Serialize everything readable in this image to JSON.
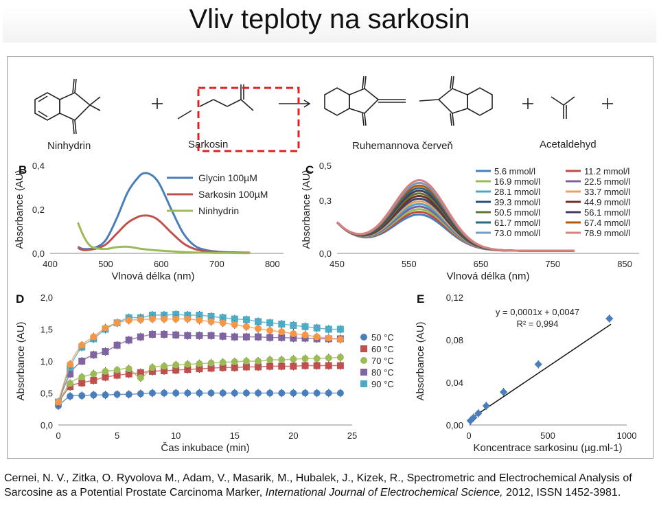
{
  "title": "Vliv teploty na sarkosin",
  "scheme": {
    "labels": [
      "Ninhydrin",
      "Sarkosin",
      "Ruhemannova červeň",
      "Acetaldehyd"
    ]
  },
  "citation": {
    "part1": "Cernei, N. V., Zitka, O. Ryvolova M., Adam, V., Masarik, M., Hubalek, J., Kizek, R., Spectrometric and Electrochemical Analysis of Sarcosine as a Potential Prostate Carcinoma Marker, ",
    "journal": "International Journal of Electrochemical Science,",
    "part2": " 2012, ISSN 1452-3981."
  },
  "chart_data": [
    {
      "panel": "B",
      "type": "line",
      "xlabel": "Vlnová délka (nm)",
      "ylabel": "Absorbance (AU)",
      "xticks": [
        "400",
        "500",
        "600",
        "700",
        "800"
      ],
      "yticks": [
        "0,0",
        "0,2",
        "0,4"
      ],
      "xlim": [
        400,
        820
      ],
      "ylim": [
        0,
        0.4
      ],
      "legend_position": "top-right",
      "series": [
        {
          "name": "Glycin 100µM",
          "color": "#4a7ebb",
          "x": [
            450,
            460,
            480,
            500,
            520,
            540,
            560,
            570,
            580,
            590,
            600,
            620,
            640,
            660,
            680,
            700,
            720,
            740,
            760
          ],
          "y": [
            0.03,
            0.02,
            0.025,
            0.06,
            0.16,
            0.28,
            0.35,
            0.365,
            0.36,
            0.34,
            0.3,
            0.19,
            0.09,
            0.035,
            0.015,
            0.008,
            0.005,
            0.004,
            0.003
          ]
        },
        {
          "name": "Sarkosin 100µM",
          "color": "#c0504d",
          "x": [
            450,
            460,
            480,
            500,
            520,
            540,
            560,
            570,
            580,
            590,
            600,
            620,
            640,
            660,
            680,
            700,
            720,
            740,
            760
          ],
          "y": [
            0.025,
            0.015,
            0.02,
            0.04,
            0.09,
            0.14,
            0.168,
            0.172,
            0.17,
            0.16,
            0.14,
            0.09,
            0.045,
            0.02,
            0.01,
            0.006,
            0.004,
            0.003,
            0.003
          ]
        },
        {
          "name": "Ninhydrin",
          "color": "#9bbb59",
          "x": [
            450,
            460,
            470,
            480,
            500,
            520,
            540,
            560,
            580,
            600,
            620,
            640,
            660,
            680,
            700,
            720,
            740,
            760
          ],
          "y": [
            0.14,
            0.08,
            0.04,
            0.025,
            0.02,
            0.028,
            0.03,
            0.022,
            0.016,
            0.012,
            0.009,
            0.006,
            0.004,
            0.003,
            0.002,
            0.002,
            0.001,
            0.001
          ]
        }
      ]
    },
    {
      "panel": "C",
      "type": "line",
      "xlabel": "Vlnová délka (nm)",
      "ylabel": "Absorbance (AU)",
      "xticks": [
        "450",
        "550",
        "650",
        "750",
        "850"
      ],
      "yticks": [
        "0,0",
        "0,3",
        "0,5"
      ],
      "xlim": [
        450,
        870
      ],
      "ylim": [
        0,
        0.5
      ],
      "legend_position": "top-right",
      "series": [
        {
          "name": "5.6 mmol/l",
          "color": "#4a7ebb",
          "peak": 0.2
        },
        {
          "name": "11.2 mmol/l",
          "color": "#be4b48",
          "peak": 0.215
        },
        {
          "name": "16.9 mmol/l",
          "color": "#98b954",
          "peak": 0.23
        },
        {
          "name": "22.5 mmol/l",
          "color": "#7d60a0",
          "peak": 0.245
        },
        {
          "name": "28.1 mmol/l",
          "color": "#46aac5",
          "peak": 0.26
        },
        {
          "name": "33.7 mmol/l",
          "color": "#f59d56",
          "peak": 0.275
        },
        {
          "name": "39.3 mmol/l",
          "color": "#2c4d75",
          "peak": 0.29
        },
        {
          "name": "44.9 mmol/l",
          "color": "#772c2a",
          "peak": 0.305
        },
        {
          "name": "50.5 mmol/l",
          "color": "#5f7530",
          "peak": 0.32
        },
        {
          "name": "56.1 mmol/l",
          "color": "#4b3861",
          "peak": 0.335
        },
        {
          "name": "61.7 mmol/l",
          "color": "#276a7c",
          "peak": 0.35
        },
        {
          "name": "67.4 mmol/l",
          "color": "#b65708",
          "peak": 0.365
        },
        {
          "name": "73.0 mmol/l",
          "color": "#729acb",
          "peak": 0.38
        },
        {
          "name": "78.9 mmol/l",
          "color": "#d9807d",
          "peak": 0.395
        }
      ]
    },
    {
      "panel": "D",
      "type": "scatter",
      "xlabel": "Čas inkubace (min)",
      "ylabel": "Absorbance (AU)",
      "xticks": [
        "0",
        "5",
        "10",
        "15",
        "20",
        "25"
      ],
      "yticks": [
        "0,0",
        "0,5",
        "1,0",
        "1,5",
        "2,0"
      ],
      "xlim": [
        0,
        25
      ],
      "ylim": [
        0,
        2.0
      ],
      "legend_position": "right",
      "x": [
        0,
        1,
        2,
        3,
        4,
        5,
        6,
        7,
        8,
        9,
        10,
        11,
        12,
        13,
        14,
        15,
        16,
        17,
        18,
        19,
        20,
        21,
        22,
        23,
        24
      ],
      "series": [
        {
          "name": "50 °C",
          "color": "#4a7ebb",
          "marker": "circle",
          "values": [
            0.3,
            0.45,
            0.46,
            0.47,
            0.47,
            0.48,
            0.48,
            0.49,
            0.5,
            0.5,
            0.5,
            0.5,
            0.5,
            0.5,
            0.5,
            0.5,
            0.5,
            0.5,
            0.5,
            0.5,
            0.5,
            0.5,
            0.5,
            0.5,
            0.5
          ]
        },
        {
          "name": "60 °C",
          "color": "#c0504d",
          "marker": "square",
          "values": [
            0.35,
            0.6,
            0.66,
            0.7,
            0.75,
            0.78,
            0.8,
            0.82,
            0.84,
            0.85,
            0.86,
            0.87,
            0.88,
            0.89,
            0.9,
            0.9,
            0.91,
            0.91,
            0.92,
            0.92,
            0.92,
            0.93,
            0.93,
            0.93,
            0.93
          ]
        },
        {
          "name": "70 °C",
          "color": "#9bbb59",
          "marker": "circle",
          "values": [
            0.36,
            0.65,
            0.75,
            0.8,
            0.84,
            0.86,
            0.88,
            0.74,
            0.9,
            0.92,
            0.94,
            0.95,
            0.96,
            0.97,
            0.98,
            0.99,
            1.0,
            1.0,
            1.02,
            1.02,
            1.03,
            1.04,
            1.04,
            1.05,
            1.06
          ]
        },
        {
          "name": "80 °C",
          "color": "#8064a2",
          "marker": "square",
          "values": [
            0.36,
            0.8,
            1.0,
            1.1,
            1.15,
            1.25,
            1.33,
            1.38,
            1.42,
            1.42,
            1.41,
            1.4,
            1.4,
            1.4,
            1.39,
            1.38,
            1.38,
            1.38,
            1.37,
            1.37,
            1.36,
            1.36,
            1.35,
            1.35,
            1.35
          ]
        },
        {
          "name": "90 °C",
          "color": "#4bacc6",
          "marker": "square",
          "values": [
            0.36,
            0.9,
            1.22,
            1.35,
            1.5,
            1.6,
            1.68,
            1.68,
            1.72,
            1.72,
            1.73,
            1.72,
            1.72,
            1.7,
            1.68,
            1.66,
            1.65,
            1.62,
            1.6,
            1.58,
            1.56,
            1.54,
            1.52,
            1.5,
            1.5
          ]
        },
        {
          "name": "",
          "color": "#f79646",
          "marker": "circle",
          "values": [
            0.36,
            0.95,
            1.25,
            1.38,
            1.52,
            1.6,
            1.64,
            1.65,
            1.66,
            1.66,
            1.66,
            1.66,
            1.64,
            1.62,
            1.6,
            1.57,
            1.54,
            1.51,
            1.48,
            1.46,
            1.43,
            1.41,
            1.38,
            1.36,
            1.34
          ]
        }
      ]
    },
    {
      "panel": "E",
      "type": "scatter",
      "xlabel": "Koncentrace sarkosinu (µg.ml-1)",
      "ylabel": "Absorbance (AU)",
      "xticks": [
        "0",
        "500",
        "1000"
      ],
      "yticks": [
        "0,00",
        "0,04",
        "0,08",
        "0,12"
      ],
      "xlim": [
        0,
        1000
      ],
      "ylim": [
        0,
        0.12
      ],
      "annotation": [
        "y = 0,0001x + 0,0047",
        "R² = 0,994"
      ],
      "x": [
        10,
        30,
        60,
        110,
        220,
        440,
        890
      ],
      "y": [
        0.004,
        0.007,
        0.011,
        0.018,
        0.031,
        0.057,
        0.1
      ],
      "color": "#4a7ebb"
    }
  ]
}
